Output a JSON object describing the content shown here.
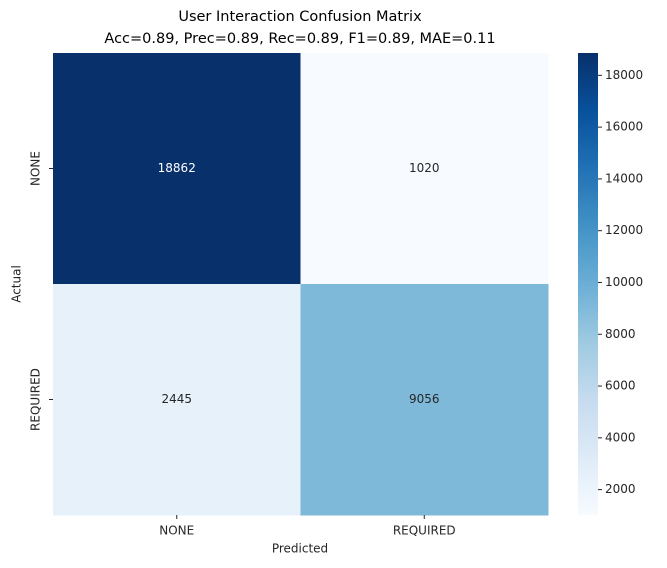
{
  "chart_data": {
    "type": "heatmap",
    "title": "User Interaction Confusion Matrix",
    "subtitle": "Acc=0.89, Prec=0.89, Rec=0.89, F1=0.89, MAE=0.11",
    "x_label": "Predicted",
    "y_label": "Actual",
    "x_categories": [
      "NONE",
      "REQUIRED"
    ],
    "y_categories": [
      "NONE",
      "REQUIRED"
    ],
    "values": [
      [
        18862,
        1020
      ],
      [
        2445,
        9056
      ]
    ],
    "clim": [
      1020,
      18862
    ],
    "cticks": [
      2000,
      4000,
      6000,
      8000,
      10000,
      12000,
      14000,
      16000,
      18000
    ],
    "colormap": [
      "#f7fbff",
      "#deebf7",
      "#c6dbef",
      "#9ecae1",
      "#6baed6",
      "#4292c6",
      "#2171b5",
      "#08519c",
      "#08306b"
    ]
  }
}
